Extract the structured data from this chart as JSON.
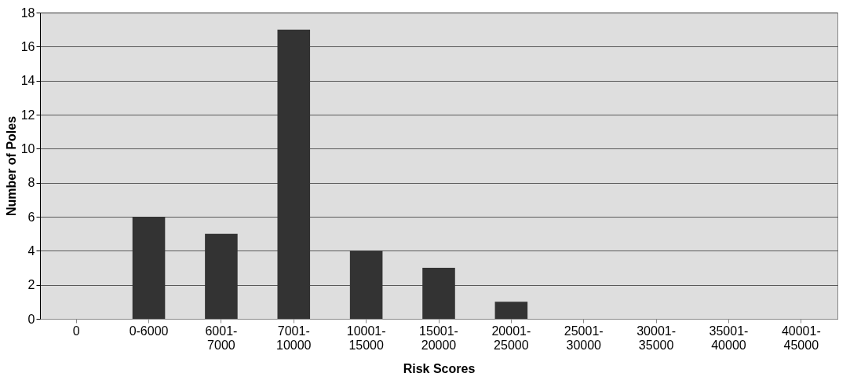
{
  "chart_data": {
    "type": "bar",
    "xlabel": "Risk Scores",
    "ylabel": "Number of Poles",
    "categories": [
      "0",
      "0-6000",
      "6001-7000",
      "7001-10000",
      "10001-15000",
      "15001-20000",
      "20001-25000",
      "25001-30000",
      "30001-35000",
      "35001-40000",
      "40001-45000"
    ],
    "values": [
      0,
      6,
      5,
      17,
      4,
      3,
      1,
      0,
      0,
      0,
      0
    ],
    "color": "#333333",
    "ylim": [
      0,
      18
    ],
    "yticks": [
      0,
      2,
      4,
      6,
      8,
      10,
      12,
      14,
      16,
      18
    ],
    "grid": "y"
  }
}
